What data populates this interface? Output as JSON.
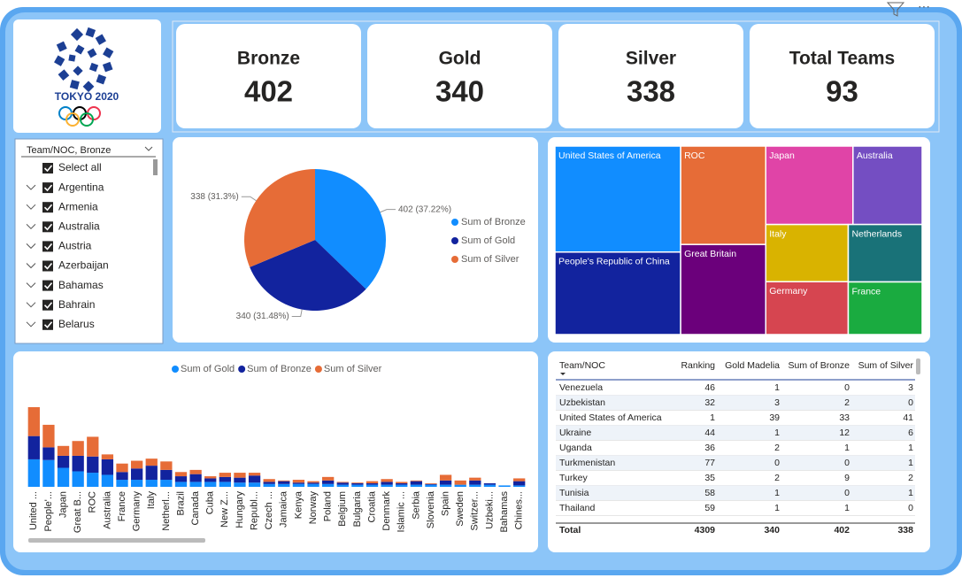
{
  "logo": {
    "text": "TOKYO 2020"
  },
  "cards": [
    {
      "label": "Bronze",
      "value": 402
    },
    {
      "label": "Gold",
      "value": 340
    },
    {
      "label": "Silver",
      "value": 338
    },
    {
      "label": "Total Teams",
      "value": 93
    }
  ],
  "slicer": {
    "header": "Team/NOC, Bronze",
    "items": [
      "Select all",
      "Argentina",
      "Armenia",
      "Australia",
      "Austria",
      "Azerbaijan",
      "Bahamas",
      "Bahrain",
      "Belarus"
    ]
  },
  "chart_data": [
    {
      "type": "pie",
      "categories": [
        "Sum of Bronze",
        "Sum of Gold",
        "Sum of Silver"
      ],
      "values": [
        402,
        340,
        338
      ],
      "value_labels": [
        "402 (37.22%)",
        "340 (31.48%)",
        "338 (31.3%)"
      ],
      "colors": [
        "#118DFF",
        "#12239E",
        "#E66C37"
      ]
    },
    {
      "type": "treemap",
      "categories": [
        "United States of America",
        "People's Republic of China",
        "ROC",
        "Great Britain",
        "Japan",
        "Australia",
        "Italy",
        "Germany",
        "Netherlands",
        "France"
      ],
      "values": [
        113,
        88,
        71,
        65,
        58,
        46,
        40,
        37,
        36,
        33
      ],
      "colors": [
        "#118DFF",
        "#12239E",
        "#E66C37",
        "#6B007B",
        "#E044A7",
        "#744EC2",
        "#D9B300",
        "#D64550",
        "#197278",
        "#1AAB40"
      ]
    },
    {
      "type": "stacked-bar",
      "categories": [
        "United ...",
        "People'...",
        "Japan",
        "Great B...",
        "ROC",
        "Australia",
        "France",
        "Germany",
        "Italy",
        "Netherl...",
        "Brazil",
        "Canada",
        "Cuba",
        "New Z...",
        "Hungary",
        "Republ...",
        "Czech ...",
        "Jamaica",
        "Kenya",
        "Norway",
        "Poland",
        "Belgium",
        "Bulgaria",
        "Croatia",
        "Denmark",
        "Islamic ...",
        "Serbia",
        "Slovenia",
        "Spain",
        "Sweden",
        "Switzer...",
        "Uzbeki...",
        "Bahamas",
        "Chines..."
      ],
      "series": [
        {
          "name": "Sum of Gold",
          "color": "#118DFF",
          "values": [
            39,
            38,
            27,
            22,
            20,
            17,
            10,
            10,
            10,
            10,
            7,
            7,
            7,
            7,
            6,
            6,
            4,
            4,
            4,
            4,
            4,
            3,
            3,
            3,
            3,
            3,
            3,
            3,
            3,
            3,
            3,
            3,
            2,
            2
          ]
        },
        {
          "name": "Sum of Bronze",
          "color": "#12239E",
          "values": [
            33,
            18,
            17,
            22,
            23,
            22,
            11,
            16,
            20,
            14,
            8,
            11,
            5,
            7,
            7,
            10,
            3,
            4,
            2,
            2,
            5,
            3,
            2,
            2,
            4,
            2,
            5,
            1,
            6,
            0,
            6,
            2,
            0,
            6
          ]
        },
        {
          "name": "Sum of Silver",
          "color": "#E66C37",
          "values": [
            41,
            32,
            14,
            21,
            28,
            7,
            12,
            11,
            10,
            12,
            6,
            6,
            3,
            6,
            7,
            4,
            4,
            1,
            4,
            2,
            5,
            1,
            1,
            3,
            4,
            2,
            1,
            1,
            8,
            6,
            4,
            0,
            0,
            4
          ]
        }
      ]
    }
  ],
  "table": {
    "columns": [
      "Team/NOC",
      "Ranking",
      "Gold Madelia",
      "Sum of Bronze",
      "Sum of Silver"
    ],
    "rows": [
      [
        "Venezuela",
        46,
        1,
        0,
        3
      ],
      [
        "Uzbekistan",
        32,
        3,
        2,
        0
      ],
      [
        "United States of America",
        1,
        39,
        33,
        41
      ],
      [
        "Ukraine",
        44,
        1,
        12,
        6
      ],
      [
        "Uganda",
        36,
        2,
        1,
        1
      ],
      [
        "Turkmenistan",
        77,
        0,
        0,
        1
      ],
      [
        "Turkey",
        35,
        2,
        9,
        2
      ],
      [
        "Tunisia",
        58,
        1,
        0,
        1
      ],
      [
        "Thailand",
        59,
        1,
        1,
        0
      ]
    ],
    "total": [
      "Total",
      4309,
      340,
      402,
      338
    ]
  }
}
